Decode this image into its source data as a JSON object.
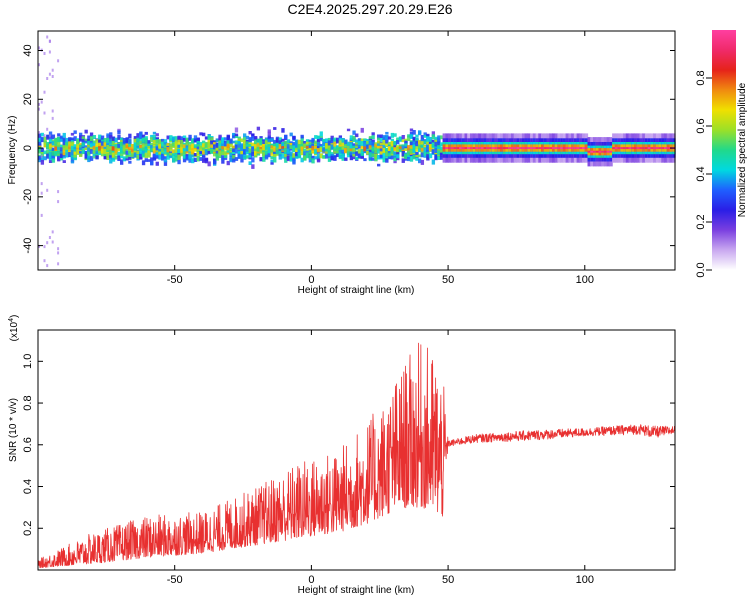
{
  "title": "C2E4.2025.297.20.29.E26",
  "chart_data": [
    {
      "type": "heatmap",
      "name": "spectrogram",
      "xlabel": "Height of straight line (km)",
      "ylabel": "Frequency (Hz)",
      "xlim": [
        -100,
        133
      ],
      "ylim": [
        -50,
        48
      ],
      "x_ticks": [
        -50,
        0,
        50,
        100
      ],
      "y_ticks": [
        -40,
        -20,
        0,
        20,
        40
      ],
      "grid": false,
      "description_of_values": {
        "noisy_region_x": [
          -100,
          48
        ],
        "noisy_band_hz": [
          -12,
          12
        ],
        "dominant_frequency_hz": 0,
        "clean_tone_region_x": [
          48,
          133
        ],
        "clean_tone_hz": 0
      },
      "colorbar": {
        "label": "Normalized spectral amplitude",
        "range": [
          0.0,
          1.0
        ],
        "ticks": [
          0.0,
          0.2,
          0.4,
          0.6,
          0.8
        ],
        "tick_labels": [
          "0.0",
          "0.2",
          "0.4",
          "0.6",
          "0.8"
        ],
        "colors": [
          "#ffffff",
          "#c9a8f0",
          "#7a3fe0",
          "#2a1ee6",
          "#1f5fff",
          "#00d9e0",
          "#21d98a",
          "#9be028",
          "#f0e000",
          "#f08a10",
          "#e6231a",
          "#f02a6a",
          "#ff3fa0"
        ]
      }
    },
    {
      "type": "line",
      "name": "snr",
      "xlabel": "Height of straight line (km)",
      "ylabel": "SNR (10 * v/v)",
      "y_multiplier": "(x10",
      "y_multiplier_exp": "4",
      "y_multiplier_close": ")",
      "xlim": [
        -100,
        133
      ],
      "ylim": [
        0,
        1.15
      ],
      "x_ticks": [
        -50,
        0,
        50,
        100
      ],
      "y_ticks": [
        0.2,
        0.4,
        0.6,
        0.8,
        1.0
      ],
      "y_tick_labels": [
        "0.2",
        "0.4",
        "0.6",
        "0.8",
        "1.0"
      ],
      "line_color": "#e83030",
      "envelope": {
        "x": [
          -100,
          -80,
          -60,
          -40,
          -20,
          -5,
          10,
          20,
          25,
          30,
          35,
          40,
          45,
          48,
          50,
          60,
          80,
          100,
          120,
          125,
          133
        ],
        "lower": [
          0.01,
          0.03,
          0.06,
          0.08,
          0.12,
          0.15,
          0.18,
          0.22,
          0.25,
          0.28,
          0.3,
          0.3,
          0.28,
          0.25,
          0.59,
          0.61,
          0.62,
          0.64,
          0.65,
          0.63,
          0.65
        ],
        "upper": [
          0.05,
          0.18,
          0.26,
          0.28,
          0.4,
          0.52,
          0.58,
          0.72,
          0.78,
          0.9,
          1.02,
          1.1,
          1.05,
          0.95,
          0.62,
          0.65,
          0.67,
          0.68,
          0.7,
          0.69,
          0.69
        ]
      }
    }
  ]
}
